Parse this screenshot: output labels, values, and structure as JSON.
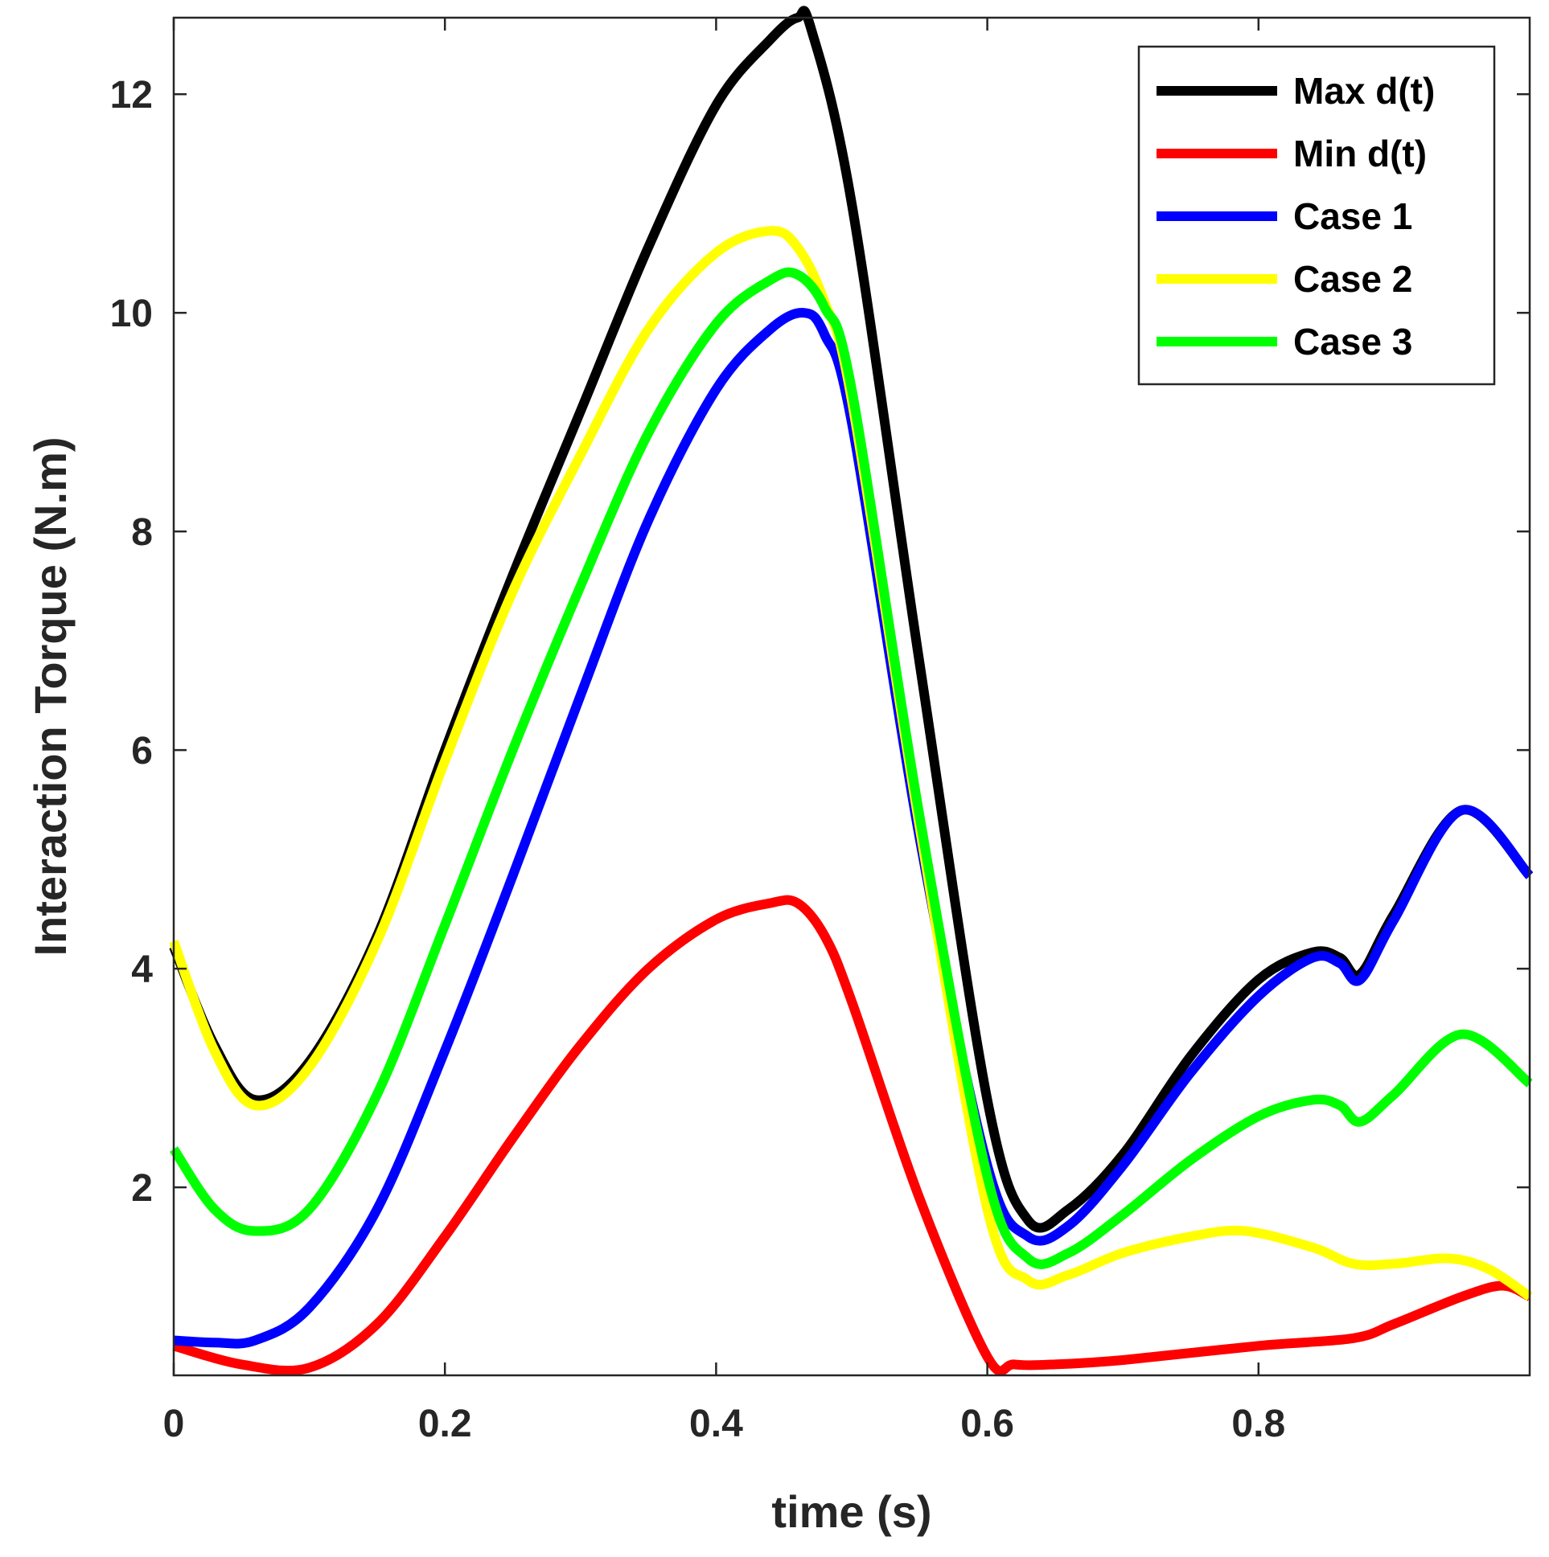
{
  "chart_data": {
    "type": "line",
    "xlabel": "time (s)",
    "ylabel": "Interaction Torque (N.m)",
    "xlim": [
      0,
      1
    ],
    "ylim": [
      0.28,
      12.7
    ],
    "xticks": [
      0,
      0.2,
      0.4,
      0.6,
      0.8
    ],
    "yticks": [
      2,
      4,
      6,
      8,
      10,
      12
    ],
    "grid": false,
    "legend_position": "top-right",
    "series": [
      {
        "name": "Max d(t)",
        "color": "#000000",
        "x": [
          0,
          0.03,
          0.06,
          0.1,
          0.15,
          0.2,
          0.25,
          0.3,
          0.35,
          0.4,
          0.44,
          0.46,
          0.47,
          0.5,
          0.55,
          0.6,
          0.63,
          0.66,
          0.7,
          0.75,
          0.8,
          0.84,
          0.86,
          0.875,
          0.9,
          0.95,
          1.0
        ],
        "y": [
          4.2,
          3.3,
          2.8,
          3.15,
          4.3,
          6.0,
          7.6,
          9.1,
          10.6,
          11.9,
          12.5,
          12.7,
          12.6,
          11.0,
          6.8,
          2.8,
          1.7,
          1.8,
          2.3,
          3.2,
          3.9,
          4.15,
          4.1,
          3.95,
          4.5,
          5.45,
          4.85
        ]
      },
      {
        "name": "Min d(t)",
        "color": "#ff0000",
        "x": [
          0,
          0.05,
          0.1,
          0.15,
          0.2,
          0.25,
          0.3,
          0.35,
          0.4,
          0.44,
          0.46,
          0.48,
          0.5,
          0.55,
          0.6,
          0.62,
          0.65,
          0.7,
          0.8,
          0.87,
          0.9,
          0.95,
          0.98,
          1.0
        ],
        "y": [
          0.55,
          0.38,
          0.35,
          0.75,
          1.55,
          2.45,
          3.3,
          4.0,
          4.45,
          4.6,
          4.6,
          4.3,
          3.7,
          1.9,
          0.45,
          0.38,
          0.38,
          0.42,
          0.55,
          0.62,
          0.75,
          1.0,
          1.1,
          1.0
        ]
      },
      {
        "name": "Case 1",
        "color": "#0000ff",
        "x": [
          0,
          0.03,
          0.06,
          0.1,
          0.15,
          0.2,
          0.25,
          0.3,
          0.35,
          0.4,
          0.44,
          0.465,
          0.48,
          0.5,
          0.55,
          0.6,
          0.63,
          0.66,
          0.7,
          0.75,
          0.8,
          0.84,
          0.86,
          0.875,
          0.9,
          0.95,
          1.0
        ],
        "y": [
          0.6,
          0.58,
          0.6,
          0.9,
          1.8,
          3.25,
          4.85,
          6.5,
          8.1,
          9.3,
          9.85,
          10.0,
          9.8,
          9.0,
          5.2,
          2.2,
          1.55,
          1.65,
          2.2,
          3.05,
          3.75,
          4.1,
          4.05,
          3.9,
          4.45,
          5.45,
          4.85
        ]
      },
      {
        "name": "Case 2",
        "color": "#ffff00",
        "x": [
          0,
          0.03,
          0.06,
          0.1,
          0.15,
          0.2,
          0.25,
          0.3,
          0.35,
          0.4,
          0.44,
          0.46,
          0.48,
          0.5,
          0.55,
          0.6,
          0.63,
          0.66,
          0.7,
          0.75,
          0.79,
          0.84,
          0.87,
          0.9,
          0.94,
          0.97,
          1.0
        ],
        "y": [
          4.25,
          3.25,
          2.75,
          3.1,
          4.25,
          5.9,
          7.45,
          8.7,
          9.85,
          10.55,
          10.75,
          10.6,
          10.1,
          9.2,
          5.3,
          1.8,
          1.15,
          1.2,
          1.4,
          1.55,
          1.6,
          1.45,
          1.3,
          1.3,
          1.35,
          1.25,
          1.0
        ]
      },
      {
        "name": "Case 3",
        "color": "#00ff00",
        "x": [
          0,
          0.03,
          0.06,
          0.1,
          0.15,
          0.2,
          0.25,
          0.3,
          0.35,
          0.4,
          0.44,
          0.46,
          0.48,
          0.5,
          0.55,
          0.6,
          0.63,
          0.66,
          0.7,
          0.75,
          0.8,
          0.84,
          0.86,
          0.875,
          0.9,
          0.95,
          1.0
        ],
        "y": [
          2.35,
          1.8,
          1.6,
          1.8,
          2.85,
          4.4,
          6.0,
          7.5,
          8.9,
          9.9,
          10.3,
          10.35,
          10.05,
          9.3,
          5.4,
          2.1,
          1.35,
          1.4,
          1.75,
          2.25,
          2.65,
          2.8,
          2.75,
          2.6,
          2.85,
          3.4,
          2.95
        ]
      }
    ]
  }
}
